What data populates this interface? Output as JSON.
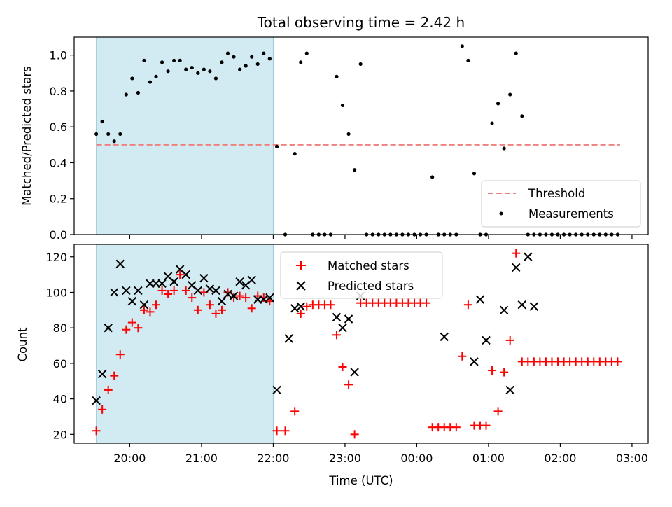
{
  "chart_data": [
    {
      "type": "scatter",
      "title": "Total observing time = 2.42 h",
      "xlabel": "",
      "ylabel": "Matched/Predicted stars",
      "ylim": [
        0,
        1.1
      ],
      "yticks": [
        0.0,
        0.2,
        0.4,
        0.6,
        0.8,
        1.0
      ],
      "yticklabels": [
        "0.0",
        "0.2",
        "0.4",
        "0.6",
        "0.8",
        "1.0"
      ],
      "grid": false,
      "legend_position": "lower-right",
      "highlight_span": [
        "19:32",
        "22:00"
      ],
      "threshold": {
        "name": "Threshold",
        "value": 0.5,
        "x_range": [
          "19:32",
          "02:50"
        ],
        "color": "#f08080"
      },
      "series": [
        {
          "name": "Measurements",
          "marker": "dot",
          "color": "#000000",
          "x": [
            "19:32",
            "19:37",
            "19:42",
            "19:47",
            "19:52",
            "19:57",
            "20:02",
            "20:07",
            "20:12",
            "20:17",
            "20:22",
            "20:27",
            "20:32",
            "20:37",
            "20:42",
            "20:47",
            "20:52",
            "20:57",
            "21:02",
            "21:07",
            "21:12",
            "21:17",
            "21:22",
            "21:27",
            "21:32",
            "21:37",
            "21:42",
            "21:47",
            "21:52",
            "21:57",
            "22:03",
            "22:10",
            "22:18",
            "22:23",
            "22:28",
            "22:33",
            "22:38",
            "22:43",
            "22:48",
            "22:53",
            "22:58",
            "23:03",
            "23:08",
            "23:13",
            "23:18",
            "23:23",
            "23:28",
            "23:33",
            "23:38",
            "23:43",
            "23:48",
            "23:53",
            "23:58",
            "00:03",
            "00:08",
            "00:13",
            "00:18",
            "00:23",
            "00:28",
            "00:33",
            "00:38",
            "00:43",
            "00:48",
            "00:53",
            "00:58",
            "01:03",
            "01:08",
            "01:13",
            "01:18",
            "01:23",
            "01:28",
            "01:33",
            "01:38",
            "01:43",
            "01:48",
            "01:53",
            "01:58",
            "02:03",
            "02:08",
            "02:13",
            "02:18",
            "02:23",
            "02:28",
            "02:33",
            "02:38",
            "02:43",
            "02:48"
          ],
          "y": [
            0.56,
            0.63,
            0.56,
            0.52,
            0.56,
            0.78,
            0.87,
            0.79,
            0.97,
            0.85,
            0.88,
            0.96,
            0.91,
            0.97,
            0.97,
            0.92,
            0.93,
            0.9,
            0.92,
            0.91,
            0.87,
            0.96,
            1.01,
            0.99,
            0.92,
            0.94,
            0.99,
            0.95,
            1.01,
            0.98,
            0.49,
            0.0,
            0.45,
            0.96,
            1.01,
            0.0,
            0.0,
            0.0,
            0.0,
            0.88,
            0.72,
            0.56,
            0.36,
            0.95,
            0.0,
            0.0,
            0.0,
            0.0,
            0.0,
            0.0,
            0.0,
            0.0,
            0.0,
            0.0,
            0.0,
            0.32,
            0.0,
            0.0,
            0.0,
            0.0,
            1.05,
            0.97,
            0.34,
            0.0,
            0.0,
            0.62,
            0.73,
            0.48,
            0.78,
            1.01,
            0.66,
            0.0,
            0.0,
            0.0,
            0.0,
            0.0,
            0.0,
            0.0,
            0.0,
            0.0,
            0.0,
            0.0,
            0.0,
            0.0,
            0.0,
            0.0,
            0.0
          ]
        }
      ]
    },
    {
      "type": "scatter",
      "title": "",
      "xlabel": "Time (UTC)",
      "ylabel": "Count",
      "ylim": [
        15,
        127
      ],
      "yticks": [
        20,
        40,
        60,
        80,
        100,
        120
      ],
      "yticklabels": [
        "20",
        "40",
        "60",
        "80",
        "100",
        "120"
      ],
      "xticks": [
        "20:00",
        "21:00",
        "22:00",
        "23:00",
        "00:00",
        "01:00",
        "02:00",
        "03:00"
      ],
      "grid": false,
      "legend_position": "upper-center",
      "highlight_span": [
        "19:32",
        "22:00"
      ],
      "series": [
        {
          "name": "Matched stars",
          "marker": "plus",
          "color": "#ff0000",
          "x": [
            "19:32",
            "19:37",
            "19:42",
            "19:47",
            "19:52",
            "19:57",
            "20:02",
            "20:07",
            "20:12",
            "20:17",
            "20:22",
            "20:27",
            "20:32",
            "20:37",
            "20:42",
            "20:47",
            "20:52",
            "20:57",
            "21:02",
            "21:07",
            "21:12",
            "21:17",
            "21:22",
            "21:27",
            "21:32",
            "21:37",
            "21:42",
            "21:47",
            "21:52",
            "21:57",
            "22:03",
            "22:10",
            "22:18",
            "22:23",
            "22:28",
            "22:33",
            "22:38",
            "22:43",
            "22:48",
            "22:53",
            "22:58",
            "23:03",
            "23:08",
            "23:13",
            "23:18",
            "23:23",
            "23:28",
            "23:33",
            "23:38",
            "23:43",
            "23:48",
            "23:53",
            "23:58",
            "00:03",
            "00:08",
            "00:13",
            "00:18",
            "00:23",
            "00:28",
            "00:33",
            "00:38",
            "00:43",
            "00:48",
            "00:53",
            "00:58",
            "01:03",
            "01:08",
            "01:13",
            "01:18",
            "01:23",
            "01:28",
            "01:33",
            "01:38",
            "01:43",
            "01:48",
            "01:53",
            "01:58",
            "02:03",
            "02:08",
            "02:13",
            "02:18",
            "02:23",
            "02:28",
            "02:33",
            "02:38",
            "02:43",
            "02:48"
          ],
          "y": [
            22,
            34,
            45,
            53,
            65,
            79,
            83,
            80,
            90,
            89,
            93,
            101,
            99,
            101,
            110,
            101,
            97,
            90,
            100,
            93,
            88,
            90,
            100,
            97,
            98,
            97,
            91,
            98,
            97,
            95,
            22,
            22,
            33,
            88,
            92,
            93,
            93,
            93,
            93,
            76,
            58,
            48,
            20,
            94,
            94,
            94,
            94,
            94,
            94,
            94,
            94,
            94,
            94,
            94,
            94,
            24,
            24,
            24,
            24,
            24,
            64,
            93,
            25,
            25,
            25,
            56,
            33,
            55,
            73,
            122,
            61,
            61,
            61,
            61,
            61,
            61,
            61,
            61,
            61,
            61,
            61,
            61,
            61,
            61,
            61,
            61,
            61
          ]
        },
        {
          "name": "Predicted stars",
          "marker": "x",
          "color": "#000000",
          "x": [
            "19:32",
            "19:37",
            "19:42",
            "19:47",
            "19:52",
            "19:57",
            "20:02",
            "20:07",
            "20:12",
            "20:17",
            "20:22",
            "20:27",
            "20:32",
            "20:37",
            "20:42",
            "20:47",
            "20:52",
            "20:57",
            "21:02",
            "21:07",
            "21:12",
            "21:17",
            "21:22",
            "21:27",
            "21:32",
            "21:37",
            "21:42",
            "21:47",
            "21:52",
            "21:57",
            "22:03",
            "22:13",
            "22:18",
            "22:23",
            "22:53",
            "22:58",
            "23:03",
            "23:08",
            "23:13",
            "00:23",
            "00:48",
            "00:53",
            "00:58",
            "01:13",
            "01:18",
            "01:23",
            "01:28",
            "01:33",
            "01:38"
          ],
          "y": [
            39,
            54,
            80,
            100,
            116,
            101,
            95,
            101,
            93,
            105,
            105,
            105,
            109,
            106,
            113,
            110,
            104,
            101,
            108,
            102,
            101,
            95,
            99,
            98,
            106,
            104,
            107,
            96,
            96,
            97,
            45,
            74,
            91,
            92,
            86,
            80,
            85,
            55,
            98,
            75,
            61,
            96,
            73,
            90,
            45,
            114,
            93,
            120,
            92
          ]
        }
      ]
    }
  ]
}
